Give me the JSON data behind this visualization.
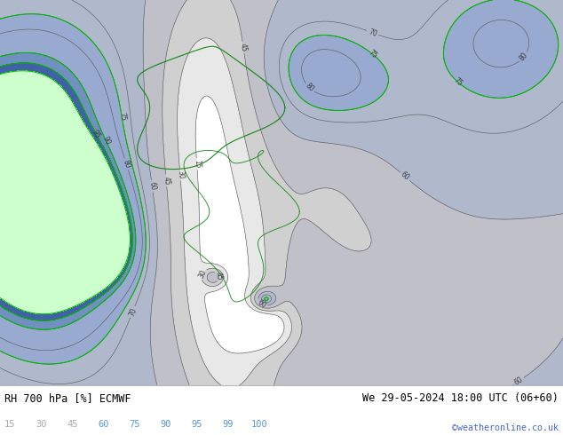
{
  "title_left": "RH 700 hPa [%] ECMWF",
  "title_right": "We 29-05-2024 18:00 UTC (06+60)",
  "credit": "©weatheronline.co.uk",
  "colorbar_levels": [
    15,
    30,
    45,
    60,
    75,
    90,
    95,
    99,
    100
  ],
  "label_colors": [
    "#aaaaaa",
    "#aaaaaa",
    "#aaaaaa",
    "#5599dd",
    "#5599dd",
    "#5599dd",
    "#5599dd",
    "#5599dd",
    "#5599dd"
  ],
  "fill_colors": [
    "#ffffff",
    "#e8e8e8",
    "#d0d0d0",
    "#c0c0c8",
    "#b0b8cc",
    "#98aad0",
    "#7090c0",
    "#4060a8",
    "#ccffcc"
  ],
  "fig_width": 6.34,
  "fig_height": 4.9,
  "dpi": 100
}
